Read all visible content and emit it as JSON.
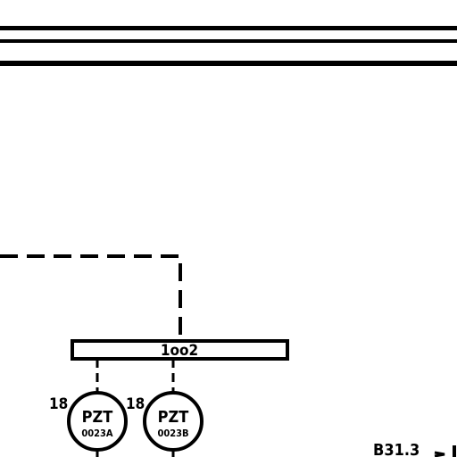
{
  "diagram": {
    "logic_block": {
      "label": "1oo2"
    },
    "instruments": [
      {
        "number": "18",
        "tag": "PZT",
        "loop": "0023A"
      },
      {
        "number": "18",
        "tag": "PZT",
        "loop": "0023B"
      }
    ],
    "off_page_ref": {
      "label": "B31.3"
    }
  }
}
